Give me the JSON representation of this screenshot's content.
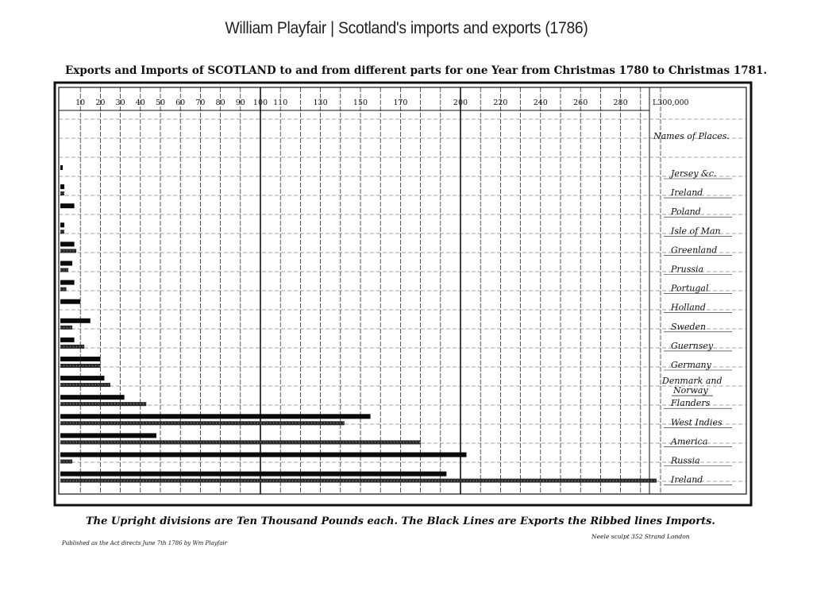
{
  "slide_title": "William Playfair | Scotland's imports and exports (1786)",
  "chart_data": {
    "type": "bar",
    "title": "Exports and Imports of SCOTLAND to and from different parts for one Year from Christmas 1780 to Christmas 1781.",
    "legend_heading": "Names of Places.",
    "note": "The Upright divisions are Ten Thousand Pounds each. The Black Lines are Exports the Ribbed lines Imports.",
    "published": "Published as the Act directs June 7th 1786 by Wm Playfair",
    "engraver": "Neele sculpt 352 Strand London",
    "x_ticks": [
      {
        "value": 10,
        "label": "10"
      },
      {
        "value": 20,
        "label": "20"
      },
      {
        "value": 30,
        "label": "30"
      },
      {
        "value": 40,
        "label": "40"
      },
      {
        "value": 50,
        "label": "50"
      },
      {
        "value": 60,
        "label": "60"
      },
      {
        "value": 70,
        "label": "70"
      },
      {
        "value": 80,
        "label": "80"
      },
      {
        "value": 90,
        "label": "90"
      },
      {
        "value": 100,
        "label": "100"
      },
      {
        "value": 110,
        "label": "110"
      },
      {
        "value": 130,
        "label": "130"
      },
      {
        "value": 150,
        "label": "150"
      },
      {
        "value": 170,
        "label": "170"
      },
      {
        "value": 200,
        "label": "200"
      },
      {
        "value": 220,
        "label": "220"
      },
      {
        "value": 240,
        "label": "240"
      },
      {
        "value": 260,
        "label": "260"
      },
      {
        "value": 280,
        "label": "280"
      },
      {
        "value": 300,
        "label": "L300,000"
      }
    ],
    "x_unit": "thousand pounds",
    "xlim": [
      0,
      300
    ],
    "grid": true,
    "categories": [
      "Jersey &c.",
      "Ireland",
      "Poland",
      "Isle of Man",
      "Greenland",
      "Prussia",
      "Portugal",
      "Holland",
      "Sweden",
      "Guernsey",
      "Germany",
      "Denmark and Norway",
      "Flanders",
      "West Indies",
      "America",
      "Russia",
      "Ireland"
    ],
    "series": [
      {
        "name": "Exports",
        "values": [
          1,
          2,
          7,
          2,
          7,
          6,
          7,
          10,
          15,
          7,
          20,
          22,
          32,
          155,
          48,
          203,
          193
        ]
      },
      {
        "name": "Imports",
        "values": [
          0,
          2,
          0,
          2,
          8,
          4,
          3,
          0,
          6,
          12,
          20,
          25,
          43,
          142,
          180,
          6,
          298
        ]
      }
    ]
  }
}
